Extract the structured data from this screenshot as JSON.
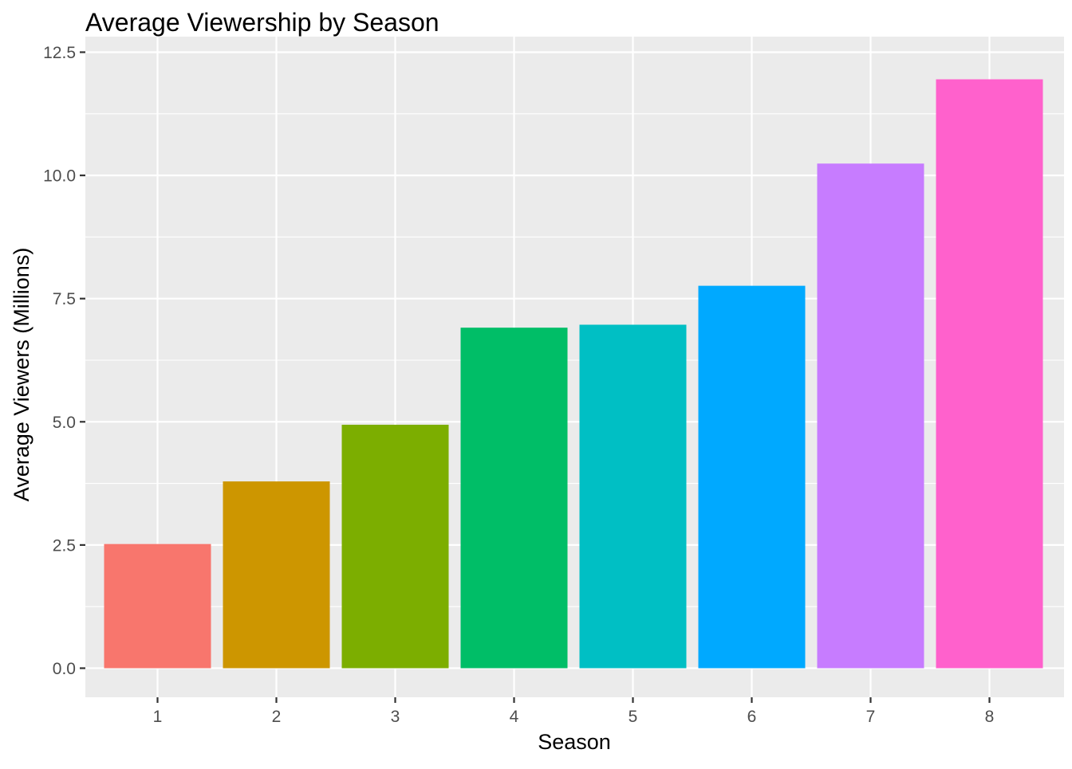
{
  "chart_data": {
    "type": "bar",
    "title": "Average Viewership by Season",
    "xlabel": "Season",
    "ylabel": "Average Viewers (Millions)",
    "categories": [
      "1",
      "2",
      "3",
      "4",
      "5",
      "6",
      "7",
      "8"
    ],
    "values": [
      2.52,
      3.79,
      4.94,
      6.91,
      6.97,
      7.76,
      10.24,
      11.95
    ],
    "colors": [
      "#F8766D",
      "#CD9600",
      "#7CAE00",
      "#00BE67",
      "#00BFC4",
      "#00A9FF",
      "#C77CFF",
      "#FF61CC"
    ],
    "ylim": [
      0,
      12.5
    ],
    "yticks": [
      0,
      2.5,
      5,
      7.5,
      10,
      12.5
    ],
    "ytick_labels": [
      "0.0",
      "2.5",
      "5.0",
      "7.5",
      "10.0",
      "12.5"
    ],
    "grid": true,
    "legend": false,
    "panel_background": "#EBEBEB",
    "grid_color": "#FFFFFF"
  }
}
